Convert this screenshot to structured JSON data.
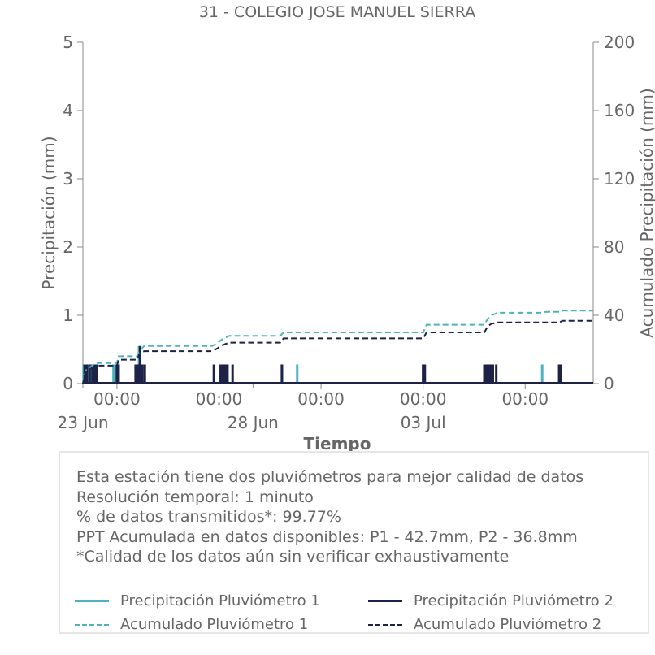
{
  "chart_data": {
    "type": "bar",
    "title": "31 - COLEGIO JOSE MANUEL SIERRA",
    "xlabel": "Tiempo",
    "ylabel": "Precipitación (mm)",
    "y2label": "Acumulado Precipitación (mm)",
    "ylim": [
      0,
      5
    ],
    "y2lim": [
      0,
      200
    ],
    "yticks": [
      0,
      1,
      2,
      3,
      4,
      5
    ],
    "y2ticks": [
      0,
      40,
      80,
      120,
      160,
      200
    ],
    "xlim": [
      0,
      15
    ],
    "xticks": [
      {
        "x": 1,
        "label": "00:00",
        "sublabel": "23 Jun"
      },
      {
        "x": 4,
        "label": "00:00",
        "sublabel": "28 Jun"
      },
      {
        "x": 7,
        "label": "00:00",
        "sublabel": ""
      },
      {
        "x": 10,
        "label": "00:00",
        "sublabel": "03 Jul"
      },
      {
        "x": 13,
        "label": "00:00",
        "sublabel": ""
      }
    ],
    "minor_ticks": [
      0,
      5
    ],
    "grid": false,
    "series": [
      {
        "name": "Precipitación Pluviómetro 1",
        "kind": "bars",
        "color": "#4fb3bf",
        "points": [
          [
            0.02,
            0.28
          ],
          [
            0.08,
            0.28
          ],
          [
            0.15,
            0.28
          ],
          [
            0.22,
            0.28
          ],
          [
            0.3,
            0.28
          ],
          [
            0.9,
            0.28
          ],
          [
            0.95,
            0.28
          ],
          [
            1.6,
            0.28
          ],
          [
            1.65,
            0.55
          ],
          [
            1.7,
            0.28
          ],
          [
            4.05,
            0.28
          ],
          [
            4.15,
            0.28
          ],
          [
            5.85,
            0.28
          ],
          [
            6.3,
            0.28
          ],
          [
            10.0,
            0.28
          ],
          [
            11.8,
            0.28
          ],
          [
            11.95,
            0.28
          ],
          [
            13.5,
            0.28
          ],
          [
            14.0,
            0.28
          ]
        ]
      },
      {
        "name": "Precipitación Pluviómetro 2",
        "kind": "bars",
        "color": "#1e2247",
        "points": [
          [
            0.05,
            0.28
          ],
          [
            0.12,
            0.28
          ],
          [
            0.2,
            0.28
          ],
          [
            0.28,
            0.28
          ],
          [
            0.32,
            0.28
          ],
          [
            0.35,
            0.28
          ],
          [
            0.4,
            0.28
          ],
          [
            1.0,
            0.28
          ],
          [
            1.05,
            0.28
          ],
          [
            1.55,
            0.28
          ],
          [
            1.62,
            0.28
          ],
          [
            1.68,
            0.55
          ],
          [
            1.75,
            0.28
          ],
          [
            1.82,
            0.28
          ],
          [
            3.85,
            0.28
          ],
          [
            4.05,
            0.28
          ],
          [
            4.12,
            0.28
          ],
          [
            4.18,
            0.28
          ],
          [
            4.25,
            0.28
          ],
          [
            4.4,
            0.28
          ],
          [
            5.85,
            0.28
          ],
          [
            10.0,
            0.28
          ],
          [
            10.05,
            0.28
          ],
          [
            11.8,
            0.28
          ],
          [
            11.87,
            0.28
          ],
          [
            11.95,
            0.28
          ],
          [
            12.0,
            0.28
          ],
          [
            12.05,
            0.28
          ],
          [
            12.15,
            0.28
          ],
          [
            14.0,
            0.28
          ],
          [
            14.05,
            0.28
          ]
        ]
      },
      {
        "name": "Acumulado Pluviómetro 1",
        "kind": "step",
        "axis": "y2",
        "color": "#4fb3bf",
        "dash": "7,4",
        "points": [
          [
            0,
            0
          ],
          [
            0.05,
            5
          ],
          [
            0.1,
            8
          ],
          [
            0.2,
            9.5
          ],
          [
            0.3,
            11
          ],
          [
            0.35,
            12
          ],
          [
            1,
            12
          ],
          [
            1.05,
            16
          ],
          [
            1.6,
            16
          ],
          [
            1.65,
            19
          ],
          [
            1.75,
            21
          ],
          [
            1.8,
            22
          ],
          [
            3.8,
            22
          ],
          [
            3.9,
            23
          ],
          [
            4.1,
            26
          ],
          [
            4.3,
            28
          ],
          [
            5.8,
            28
          ],
          [
            5.9,
            30
          ],
          [
            10,
            30
          ],
          [
            10.1,
            34.5
          ],
          [
            11.8,
            34.5
          ],
          [
            11.9,
            38
          ],
          [
            12,
            40
          ],
          [
            12.2,
            41.5
          ],
          [
            13.5,
            41.5
          ],
          [
            13.6,
            42
          ],
          [
            14,
            42
          ],
          [
            14.1,
            42.7
          ],
          [
            15,
            42.7
          ]
        ]
      },
      {
        "name": "Acumulado Pluviómetro 2",
        "kind": "step",
        "axis": "y2",
        "color": "#1e2247",
        "dash": "7,4",
        "points": [
          [
            0,
            0
          ],
          [
            0.05,
            4
          ],
          [
            0.1,
            7
          ],
          [
            0.2,
            8.5
          ],
          [
            0.3,
            9.5
          ],
          [
            0.35,
            10.5
          ],
          [
            1,
            10.5
          ],
          [
            1.05,
            14
          ],
          [
            1.6,
            14
          ],
          [
            1.65,
            17
          ],
          [
            1.75,
            18.5
          ],
          [
            1.8,
            19
          ],
          [
            3.8,
            19
          ],
          [
            3.9,
            20
          ],
          [
            4.1,
            22.5
          ],
          [
            4.3,
            24
          ],
          [
            5.8,
            24
          ],
          [
            5.9,
            26.5
          ],
          [
            10,
            26.5
          ],
          [
            10.1,
            30
          ],
          [
            11.8,
            30
          ],
          [
            11.9,
            33.5
          ],
          [
            12,
            35
          ],
          [
            12.2,
            35.8
          ],
          [
            14,
            35.8
          ],
          [
            14.1,
            36.8
          ],
          [
            15,
            36.8
          ]
        ]
      }
    ],
    "legend_placement": "bottom"
  },
  "info": {
    "lines": [
      "Esta estación tiene dos pluviómetros para mejor calidad de datos",
      "Resolución temporal: 1 minuto",
      "% de datos transmitidos*: 99.77%",
      "PPT Acumulada en datos disponibles: P1 - 42.7mm, P2 - 36.8mm",
      "*Calidad de los datos aún sin verificar exhaustivamente"
    ]
  },
  "legend": {
    "items": [
      {
        "label": "Precipitación Pluviómetro 1",
        "color": "#4fb3bf",
        "style": "solid"
      },
      {
        "label": "Precipitación Pluviómetro 2",
        "color": "#1e2247",
        "style": "solid"
      },
      {
        "label": "Acumulado Pluviómetro 1",
        "color": "#4fb3bf",
        "style": "dashed"
      },
      {
        "label": "Acumulado Pluviómetro 2",
        "color": "#1e2247",
        "style": "dashed"
      }
    ]
  }
}
